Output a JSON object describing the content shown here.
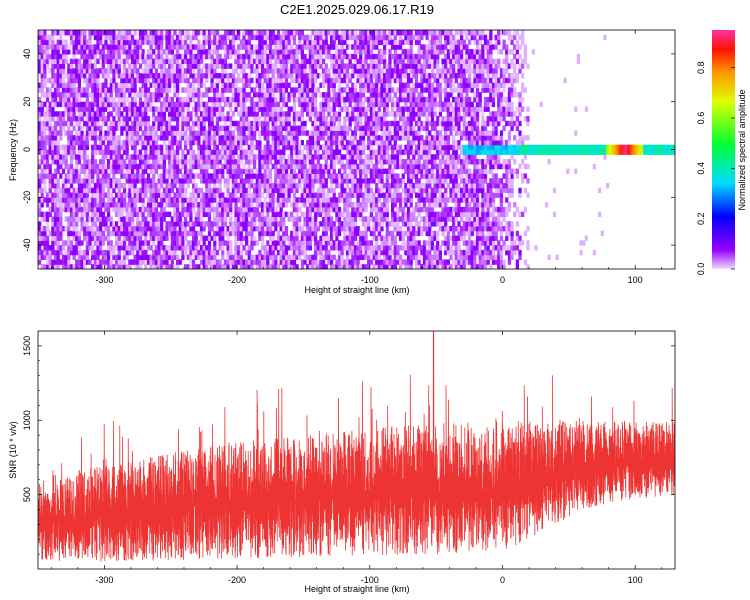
{
  "title": "C2E1.2025.029.06.17.R19",
  "colors": {
    "snr_trace": "#ee3333",
    "noise_purple": "#7a1aff",
    "axis": "#000000",
    "background": "#ffffff"
  },
  "chart_data": [
    {
      "type": "heatmap",
      "xlabel": "Height of straight line (km)",
      "ylabel": "Frequency (Hz)",
      "xlim": [
        -350,
        130
      ],
      "ylim": [
        -50,
        50
      ],
      "xticks": [
        -300,
        -200,
        -100,
        0,
        100
      ],
      "xtick_labels": [
        "-300",
        "-200",
        "-100",
        "0",
        "100"
      ],
      "yticks": [
        -40,
        -20,
        0,
        20,
        40
      ],
      "ytick_labels": [
        "-40",
        "-20",
        "0",
        "20",
        "40"
      ],
      "colorbar": {
        "label": "Normalized spectral amplitude",
        "range": [
          0,
          0.95
        ],
        "ticks": [
          0,
          0.2,
          0.4,
          0.6,
          0.8
        ],
        "tick_labels": [
          "0.0",
          "0.2",
          "0.4",
          "0.6",
          "0.8"
        ],
        "colormap": "rainbow (magenta-blue-cyan-green-yellow-red)"
      },
      "regions": [
        {
          "name": "broadband noise",
          "x_range": [
            -350,
            20
          ],
          "y_range": [
            -50,
            50
          ],
          "amplitude": [
            0.0,
            0.1
          ],
          "note": "fades out between x=0 and x=20"
        },
        {
          "name": "carrier line",
          "x_range": [
            -30,
            130
          ],
          "y_center": 0,
          "y_halfwidth": 2.5,
          "amplitude": [
            0.1,
            0.45
          ]
        },
        {
          "name": "carrier peak",
          "x_range": [
            78,
            105
          ],
          "y_center": 1,
          "amplitude": 0.95
        }
      ],
      "grid": false
    },
    {
      "type": "line",
      "xlabel": "Height of straight line (km)",
      "ylabel": "SNR (10 * v/v)",
      "xlim": [
        -350,
        130
      ],
      "ylim": [
        0,
        1600
      ],
      "xticks": [
        -300,
        -200,
        -100,
        0,
        100
      ],
      "xtick_labels": [
        "-300",
        "-200",
        "-100",
        "0",
        "100"
      ],
      "yticks": [
        500,
        1000,
        1500
      ],
      "ytick_labels": [
        "500",
        "1000",
        "1500"
      ],
      "series": [
        {
          "color": "#ee3333",
          "trend_x": [
            -350,
            -300,
            -250,
            -200,
            -150,
            -100,
            -50,
            0,
            30,
            60,
            100,
            130
          ],
          "trend_low": [
            40,
            50,
            60,
            70,
            80,
            90,
            100,
            110,
            250,
            400,
            470,
            500
          ],
          "trend_high": [
            620,
            700,
            780,
            860,
            900,
            950,
            980,
            1000,
            1000,
            1000,
            1000,
            1000
          ],
          "max_peak": {
            "x": -52,
            "y": 1600
          }
        }
      ],
      "grid": false
    }
  ]
}
